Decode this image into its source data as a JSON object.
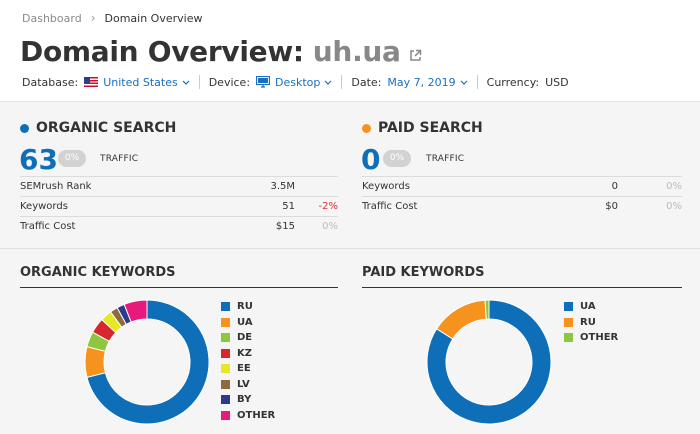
{
  "breadcrumb": {
    "dashboard": "Dashboard",
    "current": "Domain Overview"
  },
  "page": {
    "title": "Domain Overview:",
    "domain": "uh.ua"
  },
  "filters": {
    "database_label": "Database:",
    "database_value": "United States",
    "device_label": "Device:",
    "device_value": "Desktop",
    "date_label": "Date:",
    "date_value": "May 7, 2019",
    "currency_label": "Currency:",
    "currency_value": "USD"
  },
  "organic": {
    "heading": "ORGANIC SEARCH",
    "value": "63",
    "change": "0%",
    "traffic_label": "TRAFFIC",
    "rows": [
      {
        "name": "SEMrush Rank",
        "value": "3.5M",
        "pct": ""
      },
      {
        "name": "Keywords",
        "value": "51",
        "pct": "-2%"
      },
      {
        "name": "Traffic Cost",
        "value": "$15",
        "pct": "0%"
      }
    ]
  },
  "paid": {
    "heading": "PAID SEARCH",
    "value": "0",
    "change": "0%",
    "traffic_label": "TRAFFIC",
    "rows": [
      {
        "name": "Keywords",
        "value": "0",
        "pct": "0%"
      },
      {
        "name": "Traffic Cost",
        "value": "$0",
        "pct": "0%"
      }
    ]
  },
  "organic_keywords": {
    "heading": "ORGANIC KEYWORDS",
    "legend": [
      "RU",
      "UA",
      "DE",
      "KZ",
      "EE",
      "LV",
      "BY",
      "OTHER"
    ]
  },
  "paid_keywords": {
    "heading": "PAID KEYWORDS",
    "legend": [
      "UA",
      "RU",
      "OTHER"
    ]
  },
  "colors": {
    "blue": "#0f6eb8",
    "orange": "#f5931e",
    "green": "#8dc63f",
    "red": "#d6272f",
    "yellow": "#e6e827",
    "brown": "#8e6a3f",
    "navy": "#2e3a8c",
    "pink": "#e8197c"
  },
  "chart_data": [
    {
      "type": "pie",
      "categories": [
        "RU",
        "UA",
        "DE",
        "KZ",
        "EE",
        "LV",
        "BY",
        "OTHER"
      ],
      "values": [
        71,
        8,
        4,
        4,
        3,
        2,
        2,
        6
      ],
      "colors": [
        "#0f6eb8",
        "#f5931e",
        "#8dc63f",
        "#d6272f",
        "#e6e827",
        "#8e6a3f",
        "#2e3a8c",
        "#e8197c"
      ],
      "legend": "right"
    },
    {
      "type": "pie",
      "categories": [
        "UA",
        "RU",
        "OTHER"
      ],
      "values": [
        84,
        15,
        1
      ],
      "colors": [
        "#0f6eb8",
        "#f5931e",
        "#8dc63f"
      ],
      "legend": "right"
    }
  ]
}
